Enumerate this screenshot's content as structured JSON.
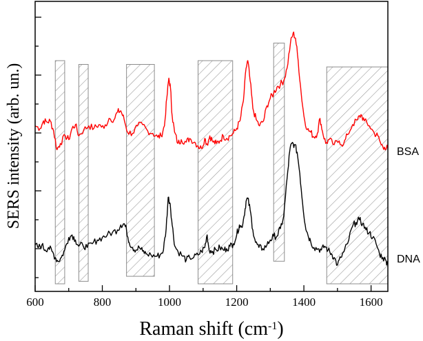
{
  "chart_data": {
    "type": "line",
    "xlabel": "Raman shift (cm",
    "xlabel_superscript": "-1",
    "xlabel_suffix": ")",
    "ylabel": "SERS intensity (arb. un.)",
    "xlim": [
      600,
      1650
    ],
    "ylim": [
      0,
      10
    ],
    "x_ticks": [
      600,
      800,
      1000,
      1200,
      1400,
      1600
    ],
    "y_ticks_shown_labels": false,
    "grid": false,
    "series": [
      {
        "name": "BSA",
        "color": "#ff0000",
        "points": [
          [
            600,
            6.3
          ],
          [
            615,
            6.2
          ],
          [
            625,
            6.5
          ],
          [
            635,
            6.45
          ],
          [
            645,
            6.5
          ],
          [
            655,
            6.1
          ],
          [
            665,
            5.35
          ],
          [
            675,
            5.6
          ],
          [
            690,
            5.9
          ],
          [
            700,
            5.75
          ],
          [
            710,
            6.2
          ],
          [
            720,
            6.35
          ],
          [
            730,
            5.9
          ],
          [
            745,
            6.15
          ],
          [
            760,
            6.3
          ],
          [
            775,
            6.2
          ],
          [
            790,
            6.35
          ],
          [
            805,
            6.2
          ],
          [
            820,
            6.6
          ],
          [
            835,
            6.55
          ],
          [
            845,
            6.85
          ],
          [
            855,
            6.9
          ],
          [
            865,
            6.55
          ],
          [
            875,
            6.05
          ],
          [
            890,
            6.0
          ],
          [
            905,
            6.3
          ],
          [
            920,
            6.35
          ],
          [
            935,
            6.1
          ],
          [
            950,
            6.0
          ],
          [
            965,
            5.85
          ],
          [
            975,
            5.9
          ],
          [
            985,
            6.3
          ],
          [
            992,
            7.4
          ],
          [
            998,
            8.2
          ],
          [
            1003,
            7.8
          ],
          [
            1008,
            6.7
          ],
          [
            1015,
            6.05
          ],
          [
            1025,
            5.6
          ],
          [
            1035,
            5.75
          ],
          [
            1050,
            5.65
          ],
          [
            1060,
            5.8
          ],
          [
            1075,
            5.65
          ],
          [
            1085,
            5.5
          ],
          [
            1095,
            5.4
          ],
          [
            1105,
            5.8
          ],
          [
            1112,
            5.55
          ],
          [
            1120,
            5.9
          ],
          [
            1130,
            5.65
          ],
          [
            1140,
            5.6
          ],
          [
            1150,
            5.7
          ],
          [
            1160,
            5.9
          ],
          [
            1170,
            5.8
          ],
          [
            1180,
            5.9
          ],
          [
            1190,
            6.0
          ],
          [
            1200,
            6.2
          ],
          [
            1210,
            6.5
          ],
          [
            1220,
            7.3
          ],
          [
            1228,
            8.6
          ],
          [
            1233,
            8.9
          ],
          [
            1240,
            8.1
          ],
          [
            1248,
            7.0
          ],
          [
            1258,
            6.55
          ],
          [
            1268,
            6.3
          ],
          [
            1280,
            6.5
          ],
          [
            1290,
            7.1
          ],
          [
            1300,
            7.4
          ],
          [
            1310,
            7.6
          ],
          [
            1320,
            7.85
          ],
          [
            1330,
            7.95
          ],
          [
            1340,
            8.1
          ],
          [
            1350,
            8.6
          ],
          [
            1360,
            9.6
          ],
          [
            1368,
            10.0
          ],
          [
            1375,
            9.8
          ],
          [
            1383,
            8.9
          ],
          [
            1392,
            7.6
          ],
          [
            1400,
            6.7
          ],
          [
            1410,
            6.15
          ],
          [
            1420,
            6.05
          ],
          [
            1430,
            5.85
          ],
          [
            1440,
            6.0
          ],
          [
            1448,
            6.6
          ],
          [
            1455,
            6.1
          ],
          [
            1465,
            5.6
          ],
          [
            1475,
            5.75
          ],
          [
            1490,
            5.55
          ],
          [
            1505,
            5.7
          ],
          [
            1518,
            5.55
          ],
          [
            1530,
            5.95
          ],
          [
            1545,
            6.35
          ],
          [
            1560,
            6.55
          ],
          [
            1570,
            6.75
          ],
          [
            1580,
            6.5
          ],
          [
            1595,
            6.3
          ],
          [
            1610,
            6.0
          ],
          [
            1620,
            5.9
          ],
          [
            1630,
            5.55
          ],
          [
            1640,
            5.45
          ],
          [
            1650,
            5.4
          ]
        ]
      },
      {
        "name": "DNA",
        "color": "#000000",
        "points": [
          [
            600,
            1.55
          ],
          [
            610,
            1.45
          ],
          [
            620,
            1.55
          ],
          [
            630,
            1.35
          ],
          [
            640,
            1.45
          ],
          [
            650,
            1.3
          ],
          [
            660,
            1.05
          ],
          [
            668,
            0.9
          ],
          [
            678,
            1.05
          ],
          [
            688,
            1.35
          ],
          [
            700,
            1.85
          ],
          [
            710,
            1.95
          ],
          [
            720,
            1.75
          ],
          [
            730,
            1.5
          ],
          [
            742,
            1.55
          ],
          [
            755,
            1.45
          ],
          [
            770,
            1.6
          ],
          [
            785,
            1.75
          ],
          [
            800,
            1.85
          ],
          [
            815,
            1.95
          ],
          [
            830,
            2.05
          ],
          [
            845,
            2.15
          ],
          [
            855,
            2.35
          ],
          [
            865,
            2.4
          ],
          [
            872,
            2.15
          ],
          [
            880,
            1.65
          ],
          [
            890,
            1.45
          ],
          [
            900,
            1.35
          ],
          [
            910,
            1.45
          ],
          [
            920,
            1.3
          ],
          [
            930,
            1.2
          ],
          [
            945,
            1.15
          ],
          [
            960,
            1.1
          ],
          [
            972,
            1.15
          ],
          [
            982,
            1.35
          ],
          [
            990,
            2.2
          ],
          [
            996,
            3.45
          ],
          [
            1002,
            3.2
          ],
          [
            1008,
            2.35
          ],
          [
            1016,
            1.5
          ],
          [
            1025,
            1.3
          ],
          [
            1040,
            1.1
          ],
          [
            1050,
            0.95
          ],
          [
            1060,
            1.05
          ],
          [
            1072,
            1.05
          ],
          [
            1085,
            1.15
          ],
          [
            1095,
            1.3
          ],
          [
            1105,
            1.45
          ],
          [
            1112,
            1.95
          ],
          [
            1118,
            1.35
          ],
          [
            1128,
            1.3
          ],
          [
            1140,
            1.35
          ],
          [
            1150,
            1.45
          ],
          [
            1160,
            1.35
          ],
          [
            1170,
            1.4
          ],
          [
            1180,
            1.5
          ],
          [
            1190,
            1.6
          ],
          [
            1200,
            1.95
          ],
          [
            1208,
            2.35
          ],
          [
            1215,
            2.25
          ],
          [
            1222,
            2.7
          ],
          [
            1228,
            3.3
          ],
          [
            1233,
            3.4
          ],
          [
            1240,
            2.95
          ],
          [
            1248,
            2.15
          ],
          [
            1256,
            1.65
          ],
          [
            1266,
            1.45
          ],
          [
            1278,
            1.4
          ],
          [
            1290,
            1.55
          ],
          [
            1300,
            1.75
          ],
          [
            1310,
            1.9
          ],
          [
            1320,
            1.9
          ],
          [
            1330,
            2.2
          ],
          [
            1340,
            2.7
          ],
          [
            1350,
            4.2
          ],
          [
            1358,
            5.3
          ],
          [
            1364,
            5.6
          ],
          [
            1372,
            5.55
          ],
          [
            1380,
            5.25
          ],
          [
            1388,
            4.4
          ],
          [
            1396,
            3.25
          ],
          [
            1404,
            2.35
          ],
          [
            1412,
            1.95
          ],
          [
            1420,
            1.7
          ],
          [
            1430,
            1.45
          ],
          [
            1442,
            1.4
          ],
          [
            1452,
            1.35
          ],
          [
            1462,
            1.5
          ],
          [
            1472,
            1.35
          ],
          [
            1482,
            1.2
          ],
          [
            1490,
            1.05
          ],
          [
            1500,
            0.75
          ],
          [
            1510,
            1.05
          ],
          [
            1520,
            1.3
          ],
          [
            1530,
            1.6
          ],
          [
            1545,
            2.3
          ],
          [
            1555,
            2.45
          ],
          [
            1565,
            2.55
          ],
          [
            1575,
            2.4
          ],
          [
            1585,
            2.15
          ],
          [
            1595,
            2.05
          ],
          [
            1605,
            1.85
          ],
          [
            1615,
            1.6
          ],
          [
            1625,
            1.2
          ],
          [
            1635,
            1.05
          ],
          [
            1645,
            0.9
          ],
          [
            1650,
            0.85
          ]
        ]
      }
    ],
    "hatched_regions": [
      {
        "x": [
          660,
          688
        ],
        "y": [
          0,
          8.9
        ]
      },
      {
        "x": [
          730,
          758
        ],
        "y": [
          0.1,
          8.75
        ]
      },
      {
        "x": [
          872,
          955
        ],
        "y": [
          0.3,
          8.75
        ]
      },
      {
        "x": [
          1085,
          1188
        ],
        "y": [
          0,
          8.9
        ]
      },
      {
        "x": [
          1310,
          1342
        ],
        "y": [
          0.9,
          9.6
        ]
      },
      {
        "x": [
          1468,
          1650
        ],
        "y": [
          0,
          8.65
        ]
      }
    ],
    "legend": "labels at right end of each trace"
  }
}
